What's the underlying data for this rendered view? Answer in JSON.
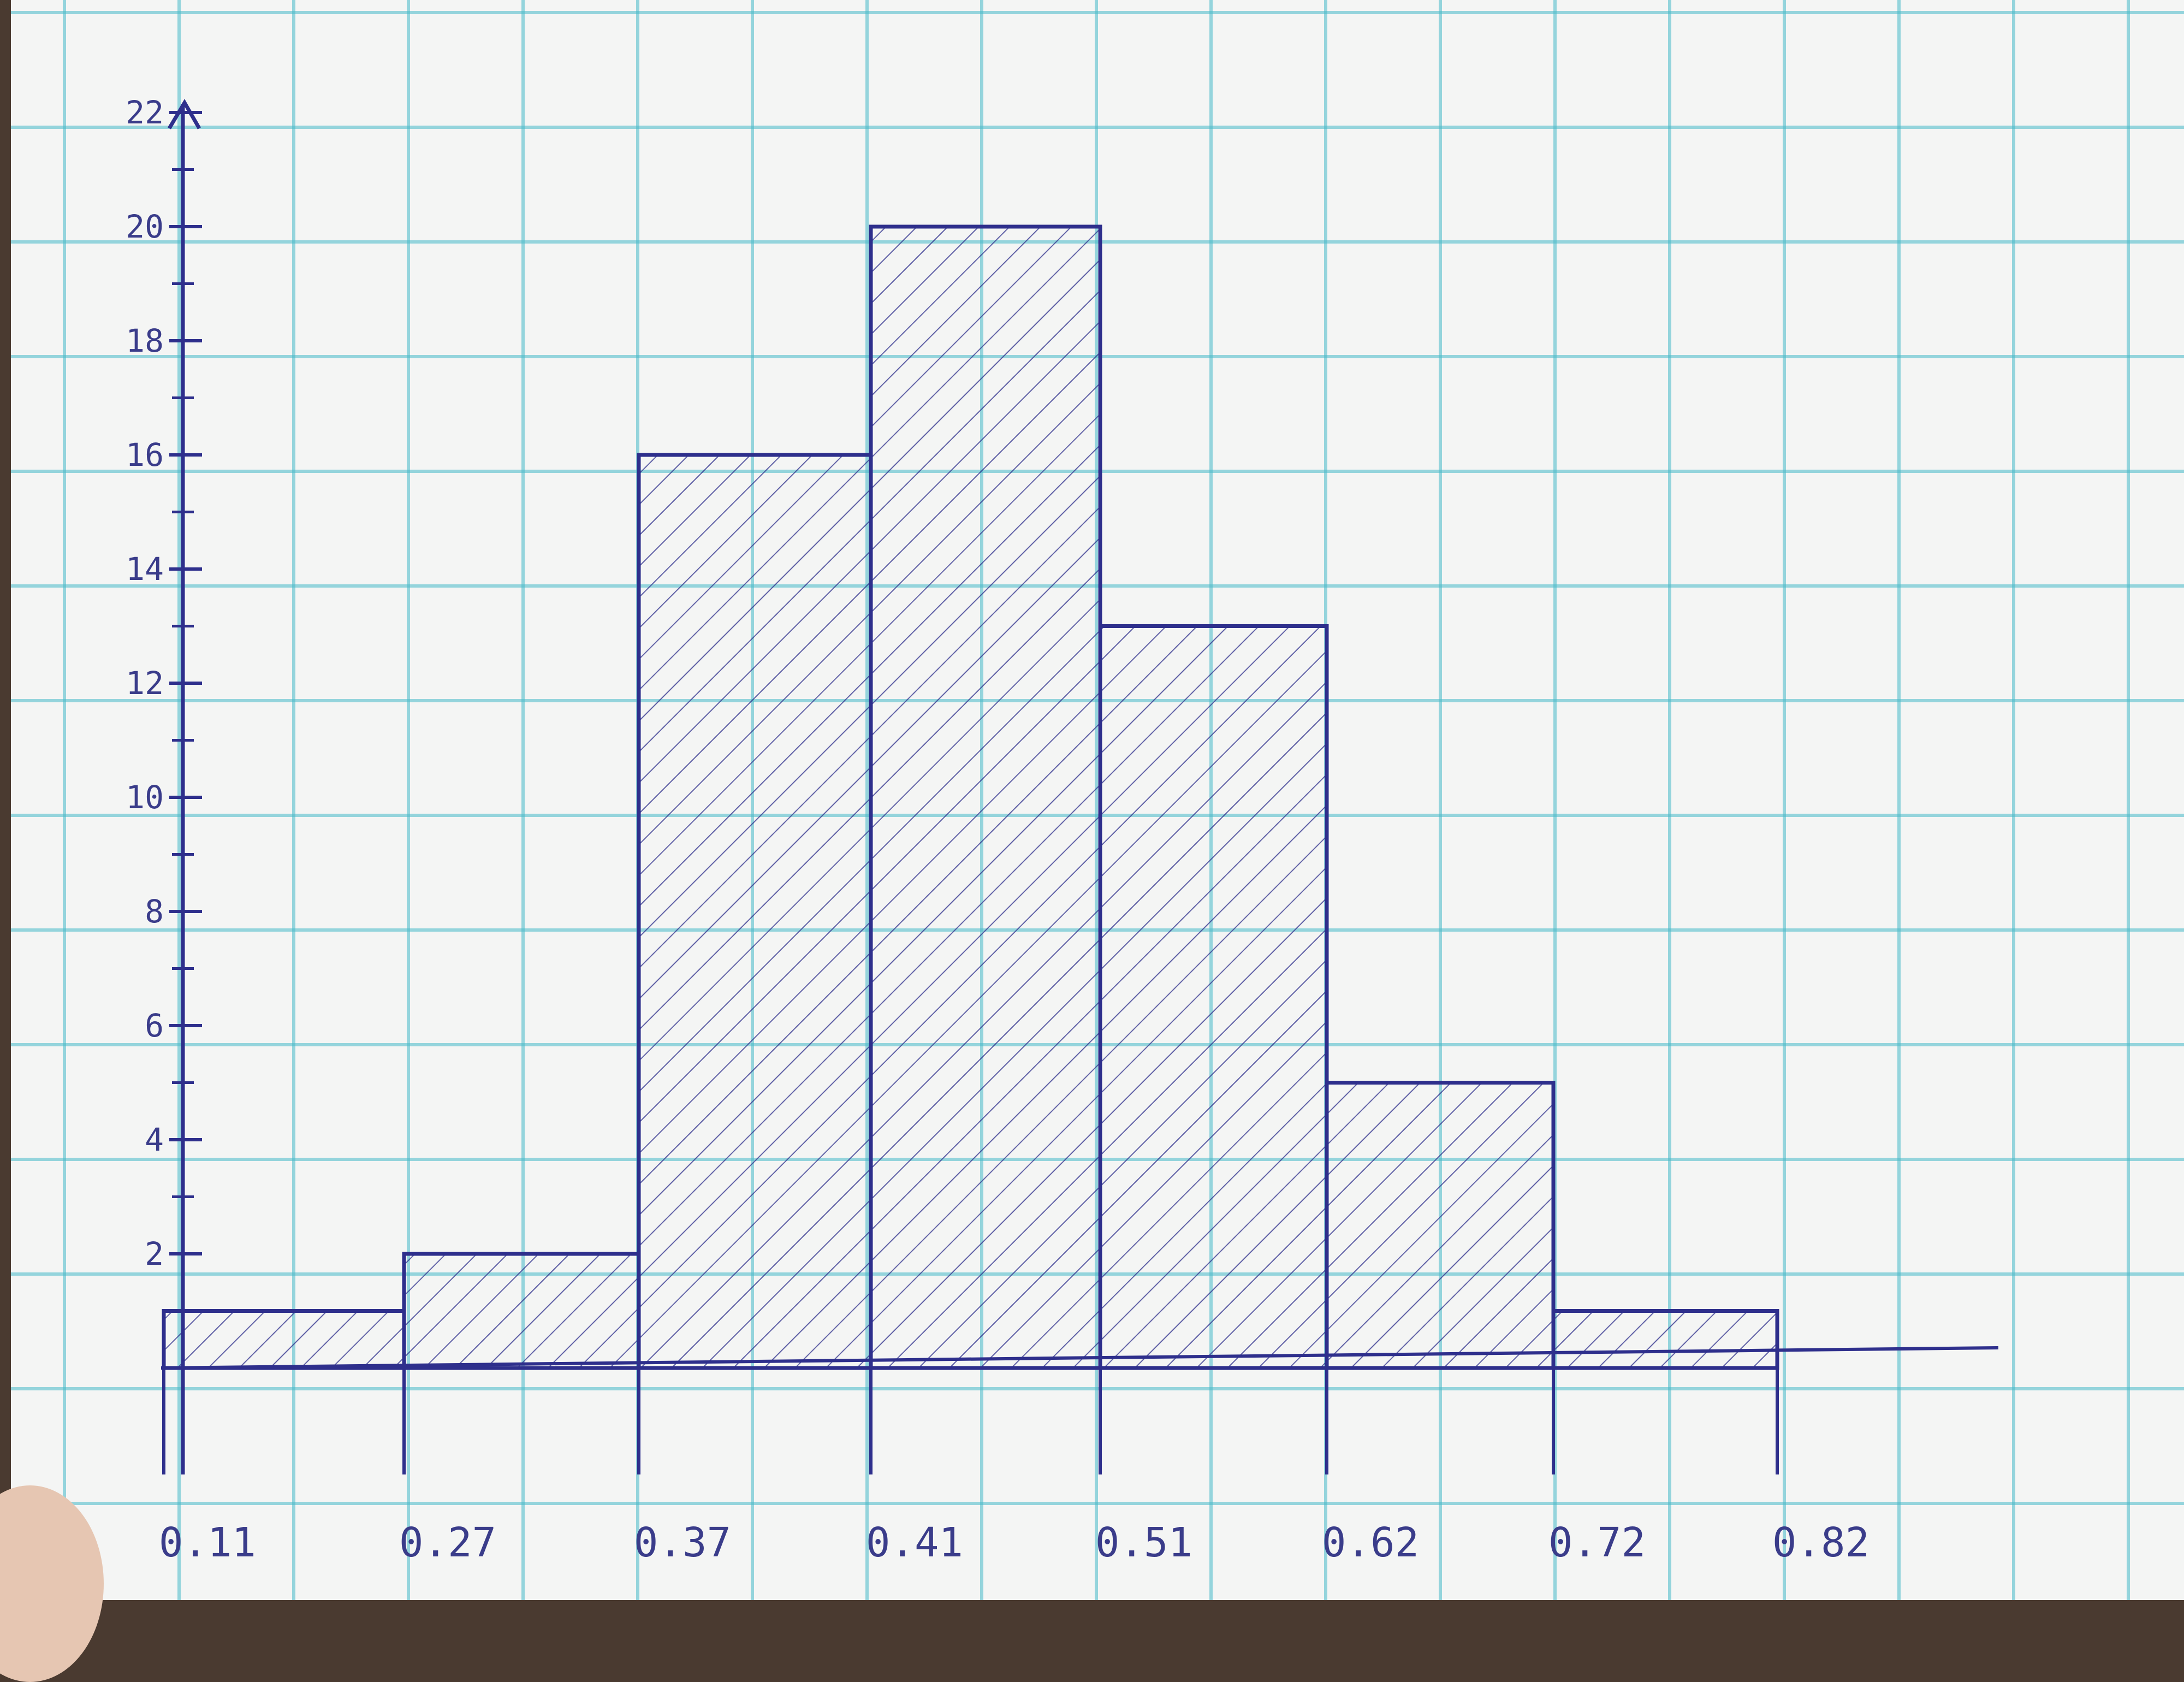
{
  "chart_data": {
    "type": "bar",
    "bins": [
      "0.11",
      "0.27",
      "0.37",
      "0.41",
      "0.51",
      "0.62",
      "0.72",
      "0.82"
    ],
    "categories": [
      "0.11-0.27",
      "0.27-0.37",
      "0.37-0.41",
      "0.41-0.51",
      "0.51-0.62",
      "0.62-0.72",
      "0.72-0.82"
    ],
    "values": [
      1,
      2,
      16,
      20,
      13,
      5,
      1
    ],
    "yticks": [
      "2",
      "4",
      "6",
      "8",
      "10",
      "12",
      "14",
      "16",
      "18",
      "20",
      "22"
    ],
    "ylim": [
      0,
      22
    ],
    "grid": true,
    "colors": {
      "ink": "#2e2f8c",
      "grid": "#46b9c8"
    }
  }
}
